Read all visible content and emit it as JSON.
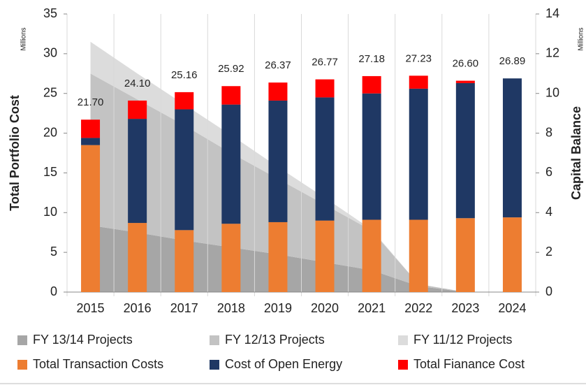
{
  "chart_data": {
    "type": "bar",
    "y_label": "Total Portfolio Cost",
    "y_unit": "Millions",
    "y2_label": "Capital Balance",
    "y2_unit": "Millions",
    "categories": [
      "2015",
      "2016",
      "2017",
      "2018",
      "2019",
      "2020",
      "2021",
      "2022",
      "2023",
      "2024"
    ],
    "ylim": [
      0,
      35
    ],
    "yticks": [
      0,
      5,
      10,
      15,
      20,
      25,
      30,
      35
    ],
    "y2lim": [
      0,
      14
    ],
    "y2ticks": [
      0,
      2,
      4,
      6,
      8,
      10,
      12,
      14
    ],
    "series": [
      {
        "name": "FY 13/14 Projects",
        "type": "area",
        "axis": "y2",
        "color": "#a6a6a6",
        "values": [
          3.36,
          3.0,
          2.6,
          2.25,
          1.9,
          1.5,
          1.1,
          0.3,
          0,
          0
        ]
      },
      {
        "name": "FY 12/13 Projects",
        "type": "area",
        "axis": "y2",
        "color": "#c3c3c3",
        "values": [
          7.64,
          6.7,
          5.8,
          4.75,
          3.8,
          2.9,
          2.0,
          0.1,
          0,
          0
        ]
      },
      {
        "name": "FY 11/12 Projects",
        "type": "area",
        "axis": "y2",
        "color": "#dcdcdc",
        "values": [
          1.6,
          1.3,
          1.05,
          0.9,
          0.6,
          0.35,
          0.05,
          0,
          0,
          0
        ]
      },
      {
        "name": "Total Transaction Costs",
        "type": "bar",
        "color": "#ed7d31",
        "values": [
          18.5,
          8.7,
          7.8,
          8.6,
          8.8,
          9.0,
          9.1,
          9.1,
          9.3,
          9.4
        ]
      },
      {
        "name": "Cost of Open Energy",
        "type": "bar",
        "color": "#1f3864",
        "values": [
          0.9,
          13.1,
          15.2,
          15.0,
          15.3,
          15.5,
          15.9,
          16.5,
          17.0,
          17.49
        ]
      },
      {
        "name": "Total Fianance Cost",
        "type": "bar",
        "color": "#ff0000",
        "values": [
          2.3,
          2.3,
          2.16,
          2.32,
          2.27,
          2.27,
          2.18,
          1.63,
          0.3,
          0
        ]
      }
    ],
    "totals": [
      21.7,
      24.1,
      25.16,
      25.92,
      26.37,
      26.77,
      27.18,
      27.23,
      26.6,
      26.89
    ],
    "totals_labels": [
      "21.70",
      "24.10",
      "25.16",
      "25.92",
      "26.37",
      "26.77",
      "27.18",
      "27.23",
      "26.60",
      "26.89"
    ]
  }
}
